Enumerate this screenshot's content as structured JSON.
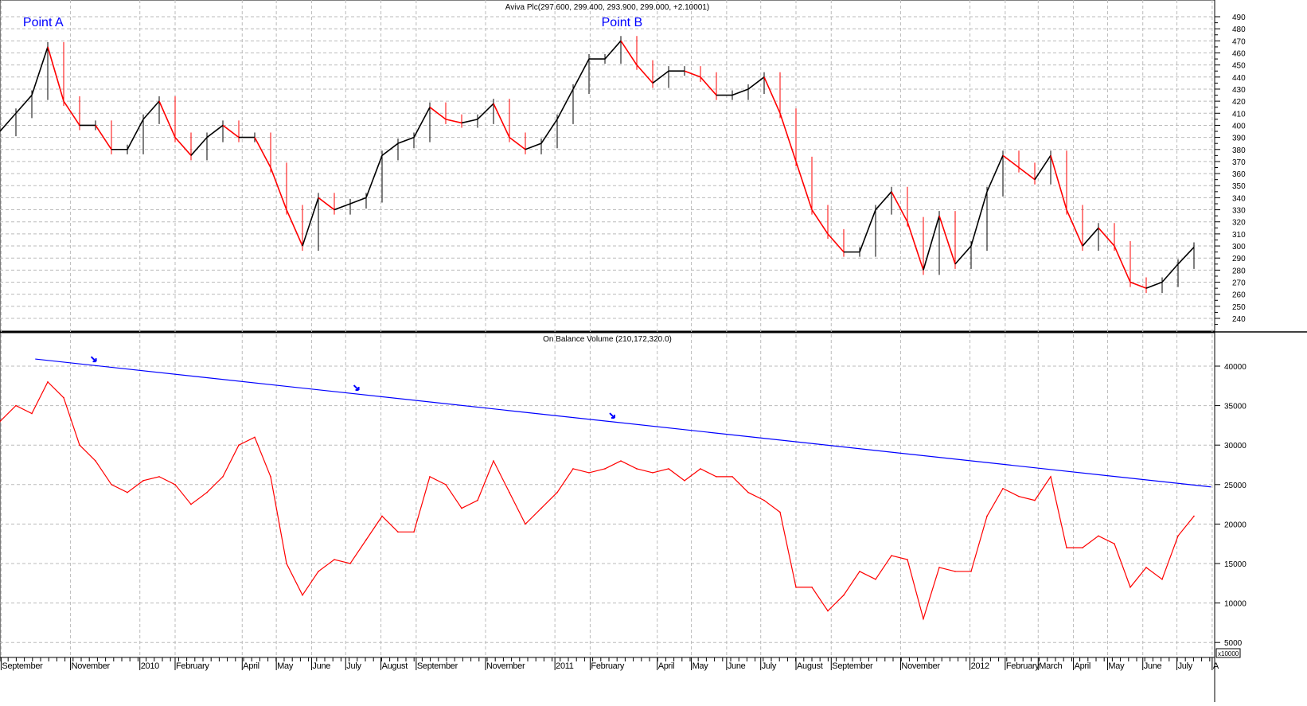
{
  "chart_data": [
    {
      "type": "line",
      "title": "Aviva Plc(297.600, 299.400, 293.900, 299.000, +2.10001)",
      "ylim": [
        235,
        495
      ],
      "yticks": [
        240,
        250,
        260,
        270,
        280,
        290,
        300,
        310,
        320,
        330,
        340,
        350,
        360,
        370,
        380,
        390,
        400,
        410,
        420,
        430,
        440,
        450,
        460,
        470,
        480,
        490
      ],
      "grid": true,
      "colors": {
        "up": "#000000",
        "down": "#ff0000",
        "annotation": "#0000ff"
      },
      "annotations": [
        {
          "text": "Point A",
          "date": "2009-10-08"
        },
        {
          "text": "Point B",
          "date": "2011-03-01"
        }
      ],
      "x": [
        "2009-08-31",
        "2009-09-14",
        "2009-09-28",
        "2009-10-12",
        "2009-10-26",
        "2009-11-09",
        "2009-11-23",
        "2009-12-07",
        "2009-12-21",
        "2010-01-04",
        "2010-01-18",
        "2010-02-01",
        "2010-02-15",
        "2010-03-01",
        "2010-03-15",
        "2010-03-29",
        "2010-04-12",
        "2010-04-26",
        "2010-05-10",
        "2010-05-24",
        "2010-06-07",
        "2010-06-21",
        "2010-07-05",
        "2010-07-19",
        "2010-08-02",
        "2010-08-16",
        "2010-08-30",
        "2010-09-13",
        "2010-09-27",
        "2010-10-11",
        "2010-10-25",
        "2010-11-08",
        "2010-11-22",
        "2010-12-06",
        "2010-12-20",
        "2011-01-03",
        "2011-01-17",
        "2011-01-31",
        "2011-02-14",
        "2011-02-28",
        "2011-03-14",
        "2011-03-28",
        "2011-04-11",
        "2011-04-25",
        "2011-05-09",
        "2011-05-23",
        "2011-06-06",
        "2011-06-20",
        "2011-07-04",
        "2011-07-18",
        "2011-08-01",
        "2011-08-15",
        "2011-08-29",
        "2011-09-12",
        "2011-09-26",
        "2011-10-10",
        "2011-10-24",
        "2011-11-07",
        "2011-11-21",
        "2011-12-05",
        "2011-12-19",
        "2012-01-02",
        "2012-01-16",
        "2012-01-30",
        "2012-02-13",
        "2012-02-27",
        "2012-03-12",
        "2012-03-26",
        "2012-04-09",
        "2012-04-23",
        "2012-05-07",
        "2012-05-21",
        "2012-06-04",
        "2012-06-18",
        "2012-07-02",
        "2012-07-16"
      ],
      "series": [
        {
          "values": [
            395,
            410,
            425,
            465,
            420,
            400,
            400,
            380,
            380,
            405,
            420,
            390,
            375,
            390,
            400,
            390,
            390,
            365,
            330,
            300,
            340,
            330,
            335,
            340,
            375,
            385,
            390,
            415,
            405,
            402,
            405,
            418,
            390,
            380,
            385,
            405,
            430,
            455,
            455,
            470,
            450,
            435,
            445,
            445,
            440,
            425,
            425,
            430,
            440,
            410,
            370,
            330,
            310,
            295,
            295,
            330,
            345,
            320,
            280,
            325,
            285,
            300,
            345,
            375,
            365,
            355,
            375,
            330,
            300,
            315,
            300,
            270,
            265,
            270,
            285,
            299
          ]
        }
      ]
    },
    {
      "type": "line",
      "title": "On Balance Volume (210,172,320.0)",
      "ylim": [
        3000,
        43000
      ],
      "yticks": [
        5000,
        10000,
        15000,
        20000,
        25000,
        30000,
        35000,
        40000
      ],
      "unit_label": "x10000",
      "grid": true,
      "colors": {
        "line": "#ff0000",
        "trendline": "#0000ff"
      },
      "trendline": {
        "start": {
          "date": "2009-10-01",
          "value": 40900
        },
        "end": {
          "date": "2012-07-31",
          "value": 24700
        }
      },
      "trendline_arrows": [
        "2009-11-22",
        "2010-07-11",
        "2011-02-21"
      ],
      "series": [
        {
          "values": [
            33000,
            35000,
            34000,
            38000,
            36000,
            30000,
            28000,
            25000,
            24000,
            25500,
            26000,
            25000,
            22500,
            24000,
            26000,
            30000,
            31000,
            26000,
            15000,
            11000,
            14000,
            15500,
            15000,
            18000,
            21000,
            19000,
            19000,
            26000,
            25000,
            22000,
            23000,
            28000,
            24000,
            20000,
            22000,
            24000,
            27000,
            26500,
            27000,
            28000,
            27000,
            26500,
            27000,
            25500,
            27000,
            26000,
            26000,
            24000,
            23000,
            21500,
            12000,
            12000,
            9000,
            11000,
            14000,
            13000,
            16000,
            15500,
            8000,
            14500,
            14000,
            14000,
            21000,
            24500,
            23500,
            23000,
            26000,
            17000,
            17000,
            18500,
            17500,
            12000,
            14500,
            13000,
            18500,
            21000
          ]
        }
      ]
    }
  ],
  "x_axis": {
    "labels": [
      {
        "text": "September",
        "date": "2009-09-01"
      },
      {
        "text": "November",
        "date": "2009-11-01"
      },
      {
        "text": "2010",
        "date": "2010-01-01"
      },
      {
        "text": "February",
        "date": "2010-02-01"
      },
      {
        "text": "April",
        "date": "2010-04-01"
      },
      {
        "text": "May",
        "date": "2010-05-01"
      },
      {
        "text": "June",
        "date": "2010-06-01"
      },
      {
        "text": "July",
        "date": "2010-07-01"
      },
      {
        "text": "August",
        "date": "2010-08-01"
      },
      {
        "text": "September",
        "date": "2010-09-01"
      },
      {
        "text": "November",
        "date": "2010-11-01"
      },
      {
        "text": "2011",
        "date": "2011-01-01"
      },
      {
        "text": "February",
        "date": "2011-02-01"
      },
      {
        "text": "April",
        "date": "2011-04-01"
      },
      {
        "text": "May",
        "date": "2011-05-01"
      },
      {
        "text": "June",
        "date": "2011-06-01"
      },
      {
        "text": "July",
        "date": "2011-07-01"
      },
      {
        "text": "August",
        "date": "2011-08-01"
      },
      {
        "text": "September",
        "date": "2011-09-01"
      },
      {
        "text": "November",
        "date": "2011-11-01"
      },
      {
        "text": "2012",
        "date": "2012-01-01"
      },
      {
        "text": "February",
        "date": "2012-02-01"
      },
      {
        "text": "March",
        "date": "2012-03-01"
      },
      {
        "text": "April",
        "date": "2012-04-01"
      },
      {
        "text": "May",
        "date": "2012-05-01"
      },
      {
        "text": "June",
        "date": "2012-06-01"
      },
      {
        "text": "July",
        "date": "2012-07-01"
      },
      {
        "text": "A",
        "date": "2012-08-01"
      }
    ]
  }
}
